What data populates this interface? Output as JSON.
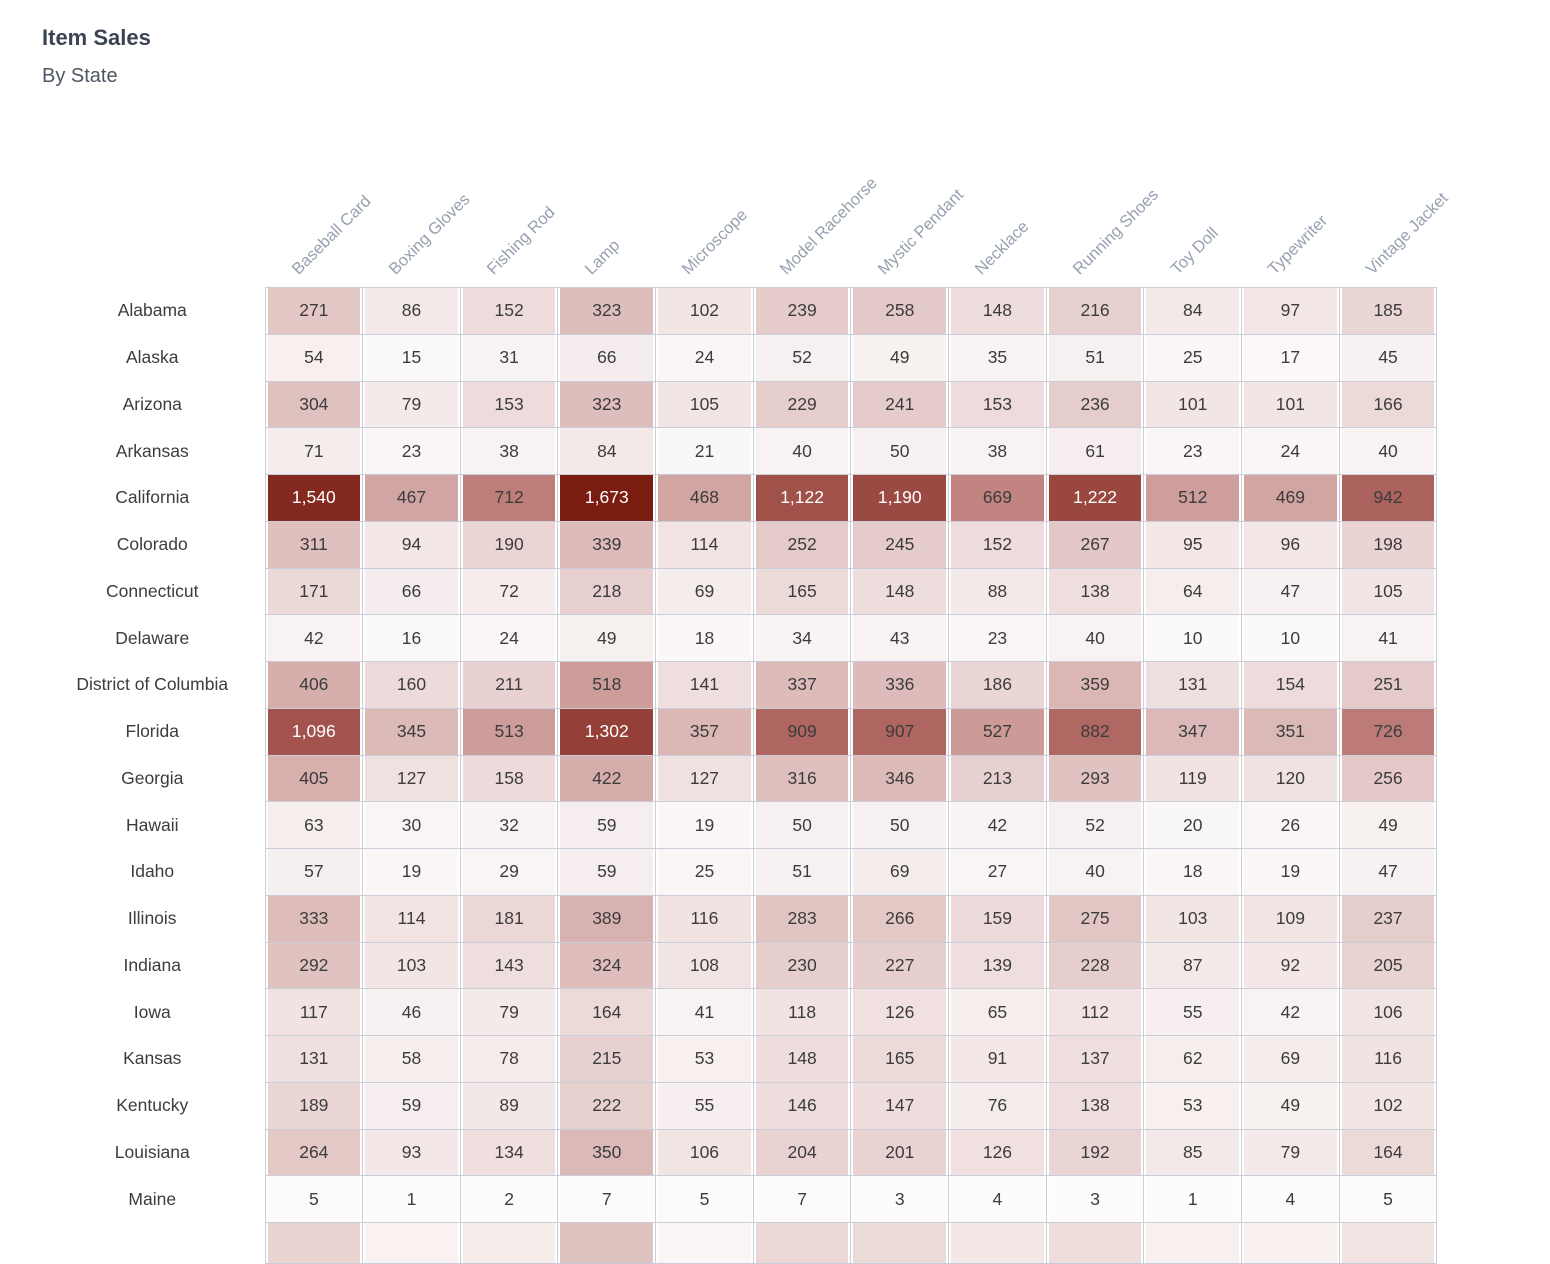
{
  "page": {
    "title": "Item Sales",
    "subtitle": "By State"
  },
  "colors": {
    "background": "#ffffff",
    "title": "#3a4351",
    "subtitle": "#4d5663",
    "grid_line": "#c9ced8",
    "cell_gap": "#ffffff",
    "row_label": "#8a94a4",
    "column_label": "#97a0b0",
    "value_text_dark": "#3c3c3c",
    "value_text_light": "#ffffff"
  },
  "chart_data": {
    "type": "heatmap",
    "title": "Item Sales",
    "subtitle": "By State",
    "legend_position": "none",
    "grid": true,
    "columns": [
      "Baseball Card",
      "Boxing Gloves",
      "Fishing Rod",
      "Lamp",
      "Microscope",
      "Model Racehorse",
      "Mystic Pendant",
      "Necklace",
      "Running Shoes",
      "Toy Doll",
      "Typewriter",
      "Vintage Jacket"
    ],
    "rows": [
      {
        "state": "Alabama",
        "values": [
          271,
          86,
          152,
          323,
          102,
          239,
          258,
          148,
          216,
          84,
          97,
          185
        ]
      },
      {
        "state": "Alaska",
        "values": [
          54,
          15,
          31,
          66,
          24,
          52,
          49,
          35,
          51,
          25,
          17,
          45
        ]
      },
      {
        "state": "Arizona",
        "values": [
          304,
          79,
          153,
          323,
          105,
          229,
          241,
          153,
          236,
          101,
          101,
          166
        ]
      },
      {
        "state": "Arkansas",
        "values": [
          71,
          23,
          38,
          84,
          21,
          40,
          50,
          38,
          61,
          23,
          24,
          40
        ]
      },
      {
        "state": "California",
        "values": [
          1540,
          467,
          712,
          1673,
          468,
          1122,
          1190,
          669,
          1222,
          512,
          469,
          942
        ]
      },
      {
        "state": "Colorado",
        "values": [
          311,
          94,
          190,
          339,
          114,
          252,
          245,
          152,
          267,
          95,
          96,
          198
        ]
      },
      {
        "state": "Connecticut",
        "values": [
          171,
          66,
          72,
          218,
          69,
          165,
          148,
          88,
          138,
          64,
          47,
          105
        ]
      },
      {
        "state": "Delaware",
        "values": [
          42,
          16,
          24,
          49,
          18,
          34,
          43,
          23,
          40,
          10,
          10,
          41
        ]
      },
      {
        "state": "District of Columbia",
        "values": [
          406,
          160,
          211,
          518,
          141,
          337,
          336,
          186,
          359,
          131,
          154,
          251
        ]
      },
      {
        "state": "Florida",
        "values": [
          1096,
          345,
          513,
          1302,
          357,
          909,
          907,
          527,
          882,
          347,
          351,
          726
        ]
      },
      {
        "state": "Georgia",
        "values": [
          405,
          127,
          158,
          422,
          127,
          316,
          346,
          213,
          293,
          119,
          120,
          256
        ]
      },
      {
        "state": "Hawaii",
        "values": [
          63,
          30,
          32,
          59,
          19,
          50,
          50,
          42,
          52,
          20,
          26,
          49
        ]
      },
      {
        "state": "Idaho",
        "values": [
          57,
          19,
          29,
          59,
          25,
          51,
          69,
          27,
          40,
          18,
          19,
          47
        ]
      },
      {
        "state": "Illinois",
        "values": [
          333,
          114,
          181,
          389,
          116,
          283,
          266,
          159,
          275,
          103,
          109,
          237
        ]
      },
      {
        "state": "Indiana",
        "values": [
          292,
          103,
          143,
          324,
          108,
          230,
          227,
          139,
          228,
          87,
          92,
          205
        ]
      },
      {
        "state": "Iowa",
        "values": [
          117,
          46,
          79,
          164,
          41,
          118,
          126,
          65,
          112,
          55,
          42,
          106
        ]
      },
      {
        "state": "Kansas",
        "values": [
          131,
          58,
          78,
          215,
          53,
          148,
          165,
          91,
          137,
          62,
          69,
          116
        ]
      },
      {
        "state": "Kentucky",
        "values": [
          189,
          59,
          89,
          222,
          55,
          146,
          147,
          76,
          138,
          53,
          49,
          102
        ]
      },
      {
        "state": "Louisiana",
        "values": [
          264,
          93,
          134,
          350,
          106,
          204,
          201,
          126,
          192,
          85,
          79,
          164
        ]
      },
      {
        "state": "Maine",
        "values": [
          5,
          1,
          2,
          7,
          5,
          7,
          3,
          4,
          3,
          1,
          4,
          5
        ]
      }
    ],
    "max_value": 1673,
    "value_format": "thousands-comma",
    "color_scale": {
      "min_color": "#fdfcfc",
      "mid_color": "#b8736f",
      "max_color": "#7b1c11",
      "gamma": 0.9,
      "white_text_threshold": 1000
    },
    "partial_next_row_visible": true,
    "partial_row_colors": [
      "#e9d4d2",
      "#faf2f1",
      "#f6ecea",
      "#dfc3c1",
      "#fbf6f5",
      "#ebd8d6",
      "#eadad8",
      "#f4e8e7",
      "#eddddb",
      "#f8f0ef",
      "#f9f1f0",
      "#f2e4e2"
    ]
  }
}
